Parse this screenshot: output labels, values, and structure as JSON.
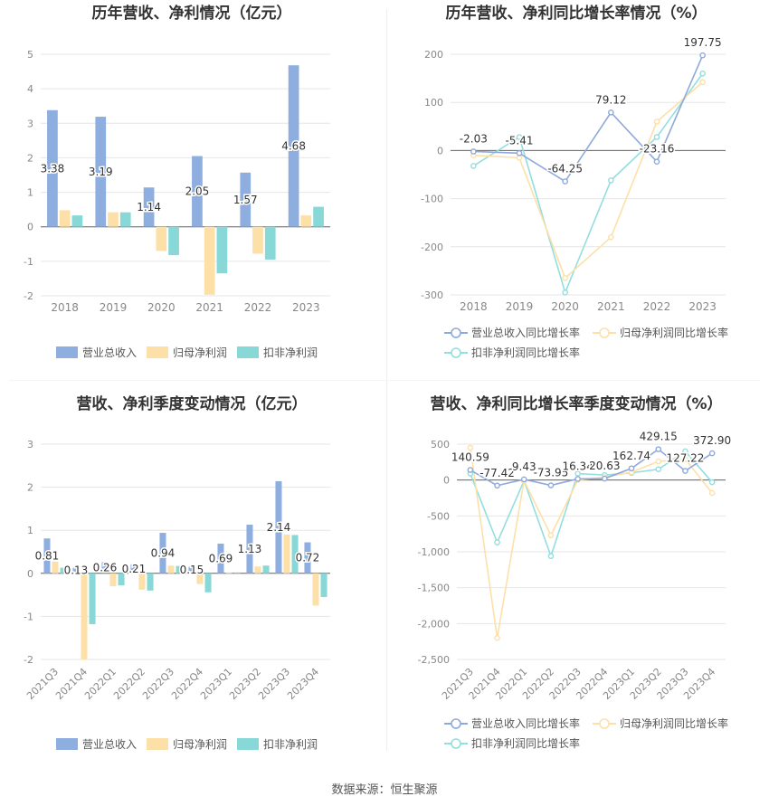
{
  "source": "数据来源：恒生聚源",
  "legend_labels": {
    "rev": "营业总收入",
    "np": "归母净利润",
    "dnp": "扣非净利润",
    "rev_g": "营业总收入同比增长率",
    "np_g": "归母净利润同比增长率",
    "dnp_g": "扣非净利润同比增长率"
  },
  "colors": {
    "rev": "#8eaedf",
    "np": "#fde0a8",
    "dnp": "#88d8d8"
  },
  "chart_data": [
    {
      "type": "bar",
      "title": "历年营收、净利情况（亿元）",
      "categories": [
        "2018",
        "2019",
        "2020",
        "2021",
        "2022",
        "2023"
      ],
      "ylim": [
        -2,
        5
      ],
      "yticks": [
        "-2",
        "-1",
        "0",
        "1",
        "2",
        "3",
        "4",
        "5"
      ],
      "label_series": 0,
      "series": [
        {
          "name": "营业总收入",
          "values": [
            3.38,
            3.19,
            1.14,
            2.05,
            1.57,
            4.68
          ],
          "labels": [
            "3.38",
            "3.19",
            "1.14",
            "2.05",
            "1.57",
            "4.68"
          ]
        },
        {
          "name": "归母净利润",
          "values": [
            0.48,
            0.42,
            -0.7,
            -1.97,
            -0.78,
            0.33
          ]
        },
        {
          "name": "扣非净利润",
          "values": [
            0.33,
            0.42,
            -0.82,
            -1.35,
            -0.95,
            0.58
          ]
        }
      ],
      "grid": true,
      "legend": "bottom"
    },
    {
      "type": "line",
      "title": "历年营收、净利同比增长率情况（%）",
      "categories": [
        "2018",
        "2019",
        "2020",
        "2021",
        "2022",
        "2023"
      ],
      "ylim": [
        -300,
        200
      ],
      "yticks": [
        "-300",
        "-200",
        "-100",
        "0",
        "100",
        "200"
      ],
      "label_series": 0,
      "series": [
        {
          "name": "营业总收入同比增长率",
          "values": [
            -2.03,
            -5.41,
            -64.25,
            79.12,
            -23.16,
            197.75
          ],
          "labels": [
            "-2.03",
            "-5.41",
            "-64.25",
            "79.12",
            "-23.16",
            "197.75"
          ]
        },
        {
          "name": "归母净利润同比增长率",
          "values": [
            -10,
            -15,
            -265,
            -180,
            60,
            142
          ]
        },
        {
          "name": "扣非净利润同比增长率",
          "values": [
            -32,
            28,
            -295,
            -62,
            28,
            160
          ]
        }
      ],
      "grid": true,
      "legend": "bottom"
    },
    {
      "type": "bar",
      "title": "营收、净利季度变动情况（亿元）",
      "categories": [
        "2021Q3",
        "2021Q4",
        "2022Q1",
        "2022Q2",
        "2022Q3",
        "2022Q4",
        "2023Q1",
        "2023Q2",
        "2023Q3",
        "2023Q4"
      ],
      "ylim": [
        -2,
        3
      ],
      "yticks": [
        "-2",
        "-1",
        "0",
        "1",
        "2",
        "3"
      ],
      "label_series": 0,
      "series": [
        {
          "name": "营业总收入",
          "values": [
            0.81,
            0.13,
            0.26,
            0.21,
            0.94,
            0.15,
            0.69,
            1.13,
            2.14,
            0.72
          ],
          "labels": [
            "0.81",
            "0.13",
            "0.26",
            "0.21",
            "0.94",
            "0.15",
            "0.69",
            "1.13",
            "2.14",
            "0.72"
          ]
        },
        {
          "name": "归母净利润",
          "values": [
            0.27,
            -2.0,
            -0.3,
            -0.38,
            0.18,
            -0.25,
            0.02,
            0.16,
            0.9,
            -0.75
          ]
        },
        {
          "name": "扣非净利润",
          "values": [
            0.13,
            -1.18,
            -0.28,
            -0.4,
            0.17,
            -0.44,
            0.02,
            0.18,
            0.89,
            -0.55
          ]
        }
      ],
      "grid": true,
      "legend": "bottom"
    },
    {
      "type": "line",
      "title": "营收、净利同比增长率季度变动情况（%）",
      "categories": [
        "2021Q3",
        "2021Q4",
        "2022Q1",
        "2022Q2",
        "2022Q3",
        "2022Q4",
        "2023Q1",
        "2023Q2",
        "2023Q3",
        "2023Q4"
      ],
      "ylim": [
        -2500,
        500
      ],
      "yticks": [
        "-2,500",
        "-2,000",
        "-1,500",
        "-1,000",
        "-500",
        "0",
        "500"
      ],
      "label_series": 0,
      "series": [
        {
          "name": "营业总收入同比增长率",
          "values": [
            140.59,
            -77.42,
            9.43,
            -73.95,
            16.34,
            20.63,
            162.74,
            429.15,
            127.22,
            372.9
          ],
          "labels": [
            "140.59",
            "-77.42",
            "9.43",
            "-73.95",
            "16.34",
            "20.63",
            "162.74",
            "429.15",
            "127.22",
            "372.90"
          ]
        },
        {
          "name": "归母净利润同比增长率",
          "values": [
            450,
            -2200,
            -10,
            -770,
            0,
            40,
            110,
            260,
            290,
            -180
          ]
        },
        {
          "name": "扣非净利润同比增长率",
          "values": [
            90,
            -870,
            -10,
            -1060,
            90,
            70,
            100,
            150,
            400,
            -30
          ]
        }
      ],
      "grid": true,
      "legend": "bottom"
    }
  ]
}
